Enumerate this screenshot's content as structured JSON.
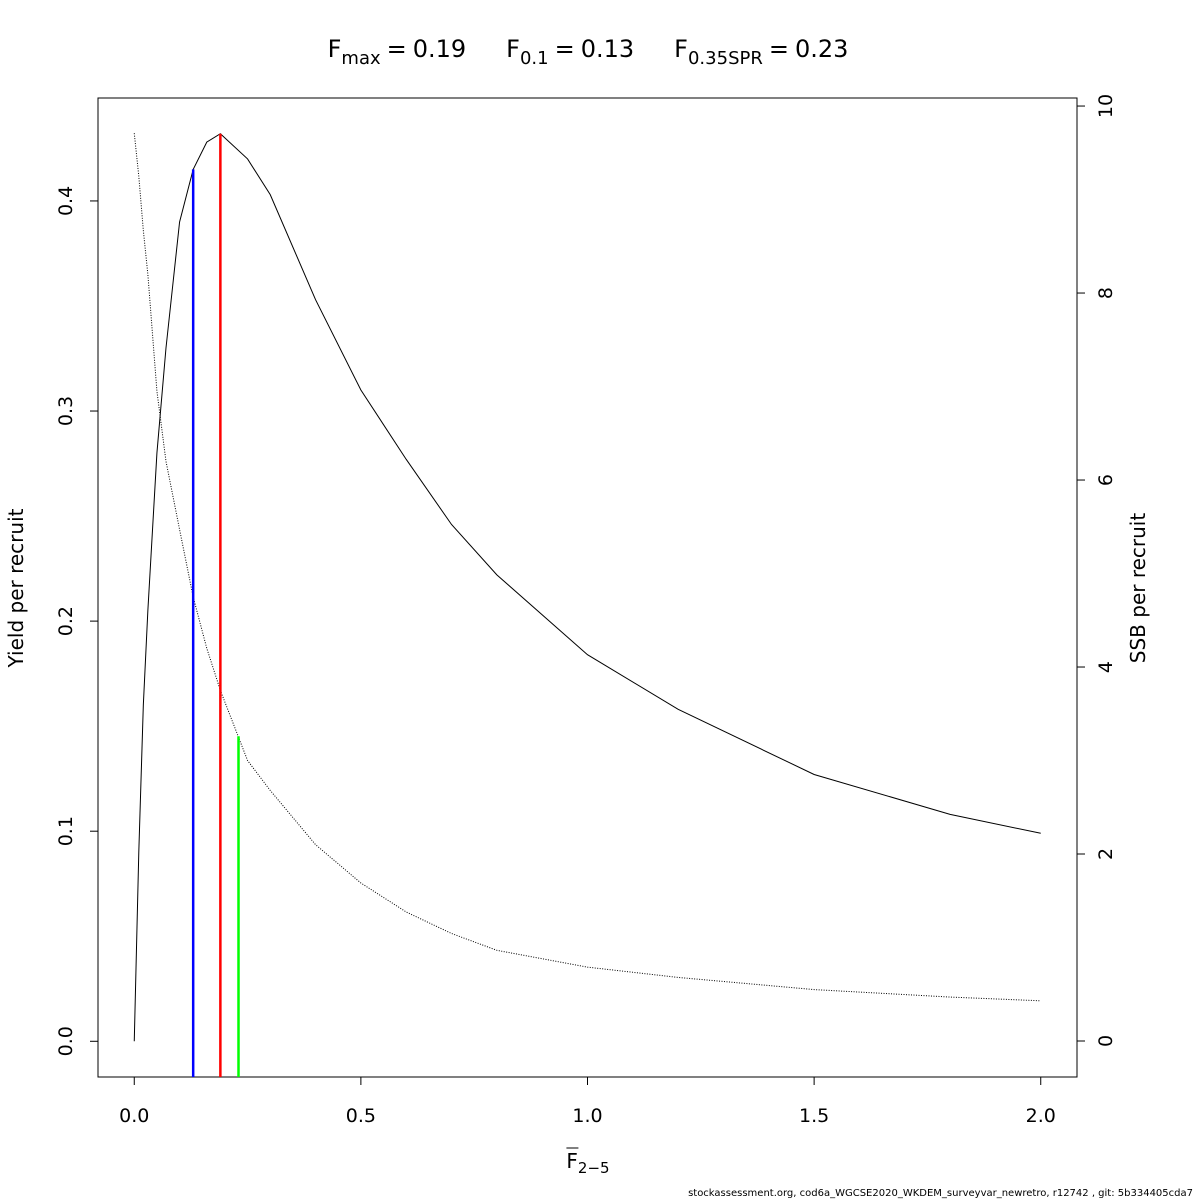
{
  "chart_data": {
    "type": "line",
    "x": [
      0,
      0.01,
      0.02,
      0.03,
      0.05,
      0.07,
      0.1,
      0.13,
      0.16,
      0.19,
      0.25,
      0.3,
      0.4,
      0.5,
      0.6,
      0.7,
      0.8,
      1.0,
      1.2,
      1.5,
      1.8,
      2.0
    ],
    "series": [
      {
        "name": "Yield per recruit",
        "color": "#000000",
        "dash": "solid",
        "axis": "y",
        "values": [
          0,
          0.09,
          0.16,
          0.205,
          0.28,
          0.33,
          0.39,
          0.415,
          0.428,
          0.432,
          0.42,
          0.403,
          0.353,
          0.31,
          0.277,
          0.246,
          0.222,
          0.184,
          0.158,
          0.127,
          0.108,
          0.099
        ]
      },
      {
        "name": "SSB per recruit",
        "color": "#000000",
        "dash": "dotted",
        "axis": "y2",
        "values": [
          9.71,
          9.25,
          8.67,
          8.2,
          6.95,
          6.2,
          5.47,
          4.75,
          4.2,
          3.75,
          3.0,
          2.68,
          2.1,
          1.69,
          1.38,
          1.15,
          0.97,
          0.79,
          0.68,
          0.55,
          0.47,
          0.43
        ]
      }
    ],
    "reference_lines": [
      {
        "symbol": "F",
        "subscript": "max",
        "relation": "=",
        "value": 0.19,
        "top": 0.432,
        "axis": "y",
        "color": "#ff0000"
      },
      {
        "symbol": "F",
        "subscript": "0.1",
        "relation": "=",
        "value": 0.13,
        "top": 0.415,
        "axis": "y",
        "color": "#0000ff"
      },
      {
        "symbol": "F",
        "subscript": "0.35SPR",
        "relation": "=",
        "value": 0.23,
        "top": 3.26,
        "axis": "y2",
        "color": "#00ff00"
      }
    ],
    "xlabel": {
      "symbol": "F",
      "subscript": "2−5"
    },
    "ylabel": "Yield per recruit",
    "y2label": "SSB per recruit",
    "footer": "stockassessment.org, cod6a_WGCSE2020_WKDEM_surveyvar_newretro, r12742 , git: 5b334405cda7",
    "xlim": [
      -0.08,
      2.08
    ],
    "ylim": [
      -0.017,
      0.449
    ],
    "y2lim": [
      -0.385,
      10.086
    ],
    "xticks": [
      {
        "value": 0,
        "label": "0.0"
      },
      0.5,
      {
        "value": 1,
        "label": "1.0"
      },
      1.5,
      {
        "value": 2,
        "label": "2.0"
      }
    ],
    "yticks": [
      {
        "value": 0,
        "label": "0.0"
      },
      0.1,
      0.2,
      0.3,
      0.4
    ],
    "y2ticks": [
      0,
      2,
      4,
      6,
      8,
      10
    ]
  }
}
